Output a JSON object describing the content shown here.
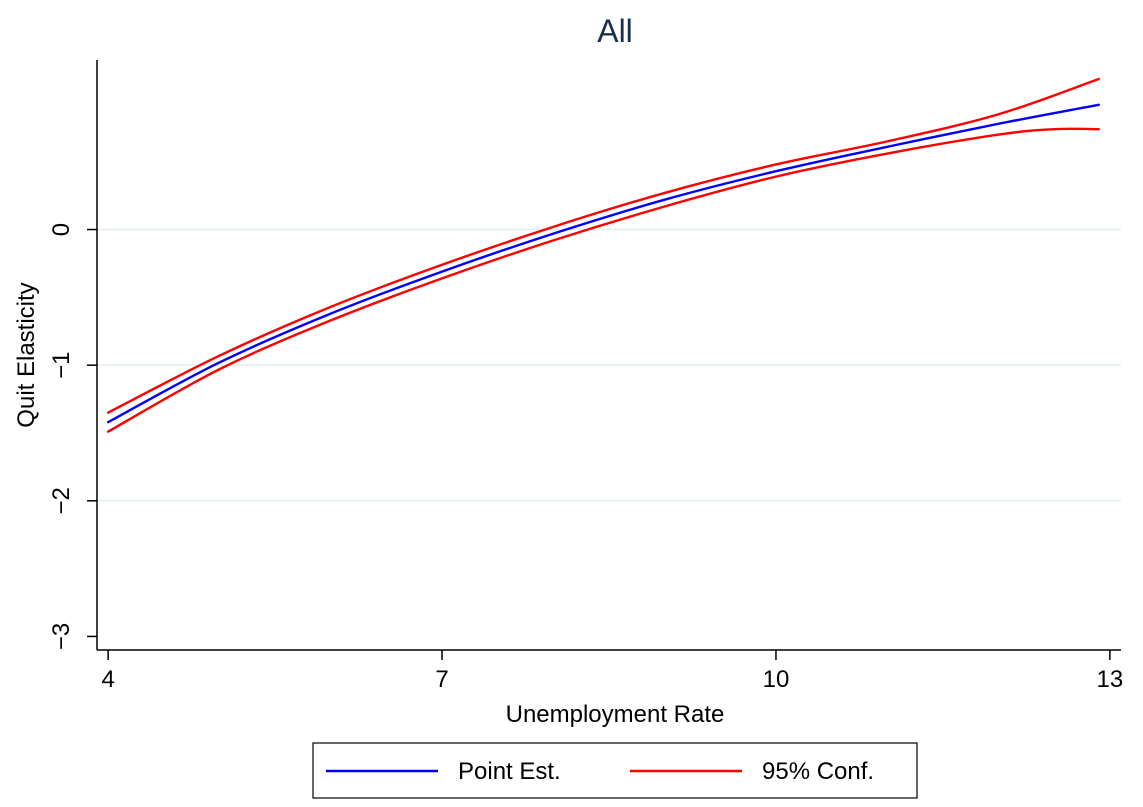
{
  "chart_data": {
    "type": "line",
    "title": "All",
    "xlabel": "Unemployment Rate",
    "ylabel": "Quit Elasticity",
    "xlim": [
      3.9,
      13.1
    ],
    "ylim": [
      -3.1,
      1.25
    ],
    "x_ticks": [
      4,
      7,
      10,
      13
    ],
    "x_tick_labels": [
      "4",
      "7",
      "10",
      "13"
    ],
    "y_ticks": [
      -3,
      -2,
      -1,
      0
    ],
    "y_tick_labels": [
      "−3",
      "−2",
      "−1",
      "0"
    ],
    "y_gridlines": [
      -2,
      -1,
      0
    ],
    "grid": true,
    "legend_position": "bottom",
    "legend": [
      {
        "label": "Point Est.",
        "color": "#0000ff"
      },
      {
        "label": "95% Conf.",
        "color": "#ff0000"
      }
    ],
    "series": [
      {
        "name": "Point Est.",
        "color": "#0000ff",
        "x": [
          4,
          5,
          6,
          7,
          8,
          9,
          10,
          11,
          12,
          12.9
        ],
        "y": [
          -1.42,
          -0.98,
          -0.62,
          -0.31,
          -0.03,
          0.22,
          0.43,
          0.61,
          0.78,
          0.92
        ]
      },
      {
        "name": "95% Conf.",
        "color": "#ff0000",
        "x": [
          4,
          5,
          6,
          7,
          8,
          9,
          10,
          11,
          12,
          12.9
        ],
        "y": [
          -1.35,
          -0.93,
          -0.57,
          -0.26,
          0.02,
          0.27,
          0.48,
          0.65,
          0.85,
          1.11
        ]
      },
      {
        "name": "95% Conf.",
        "color": "#ff0000",
        "x": [
          4,
          5,
          6,
          7,
          8,
          9,
          10,
          11,
          12,
          12.5,
          12.9
        ],
        "y": [
          -1.49,
          -1.03,
          -0.67,
          -0.36,
          -0.08,
          0.17,
          0.39,
          0.56,
          0.7,
          0.74,
          0.74
        ]
      }
    ]
  }
}
